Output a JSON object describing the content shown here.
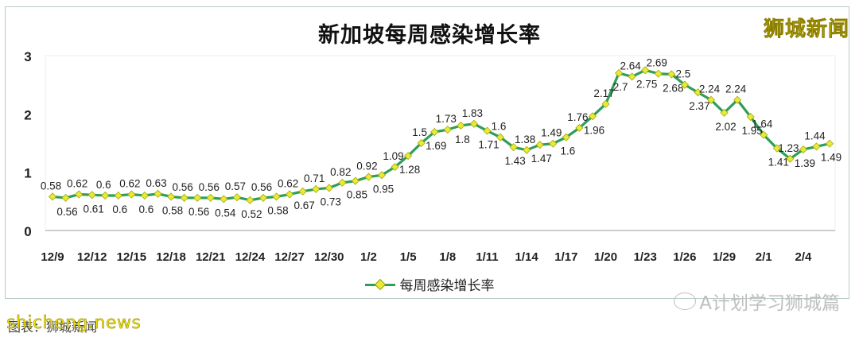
{
  "chart_data": {
    "type": "line",
    "title": "新加坡每周感染增长率",
    "xlabel": "",
    "ylabel": "",
    "ylim": [
      0,
      3
    ],
    "yticks": [
      0,
      1,
      2,
      3
    ],
    "grid": false,
    "legend_position": "bottom",
    "x_tick_labels": [
      "12/9",
      "12/12",
      "12/15",
      "12/18",
      "12/21",
      "12/24",
      "12/27",
      "12/30",
      "1/2",
      "1/5",
      "1/8",
      "1/11",
      "1/14",
      "1/17",
      "1/20",
      "1/23",
      "1/26",
      "1/29",
      "2/1",
      "2/4"
    ],
    "x": [
      "12/9",
      "12/10",
      "12/11",
      "12/12",
      "12/13",
      "12/14",
      "12/15",
      "12/16",
      "12/17",
      "12/18",
      "12/19",
      "12/20",
      "12/21",
      "12/22",
      "12/23",
      "12/24",
      "12/25",
      "12/26",
      "12/27",
      "12/28",
      "12/29",
      "12/30",
      "12/31",
      "1/1",
      "1/2",
      "1/3",
      "1/4",
      "1/5",
      "1/6",
      "1/7",
      "1/8",
      "1/9",
      "1/10",
      "1/11",
      "1/12",
      "1/13",
      "1/14",
      "1/15",
      "1/16",
      "1/17",
      "1/18",
      "1/19",
      "1/20",
      "1/21",
      "1/22",
      "1/23",
      "1/24",
      "1/25",
      "1/26",
      "1/27",
      "1/28",
      "1/29",
      "1/30",
      "1/31",
      "2/1",
      "2/2",
      "2/3",
      "2/4",
      "2/5",
      "2/6"
    ],
    "series": [
      {
        "name": "每周感染增长率",
        "color": "#2e9e58",
        "marker_color": "#e8ea3a",
        "values": [
          0.58,
          0.56,
          0.62,
          0.61,
          0.6,
          0.6,
          0.62,
          0.6,
          0.63,
          0.58,
          0.56,
          0.56,
          0.56,
          0.54,
          0.57,
          0.52,
          0.56,
          0.58,
          0.62,
          0.67,
          0.71,
          0.73,
          0.82,
          0.85,
          0.92,
          0.95,
          1.09,
          1.28,
          1.5,
          1.69,
          1.73,
          1.8,
          1.83,
          1.71,
          1.6,
          1.43,
          1.38,
          1.47,
          1.49,
          1.6,
          1.76,
          1.96,
          2.17,
          2.7,
          2.64,
          2.75,
          2.69,
          2.68,
          2.5,
          2.37,
          2.24,
          2.02,
          2.24,
          1.95,
          1.64,
          1.41,
          1.23,
          1.39,
          1.44,
          1.49
        ]
      }
    ]
  },
  "header": {
    "title": "新加坡每周感染增长率",
    "watermark": "狮城新闻"
  },
  "legend": {
    "label": "每周感染增长率"
  },
  "footer": {
    "wechat_account": "A计划学习狮城篇",
    "source_label": "图表：狮城新闻",
    "site": "shicheng.news"
  },
  "colors": {
    "line": "#2e9e58",
    "marker": "#e8ea3a",
    "watermark": "#f2e600"
  }
}
